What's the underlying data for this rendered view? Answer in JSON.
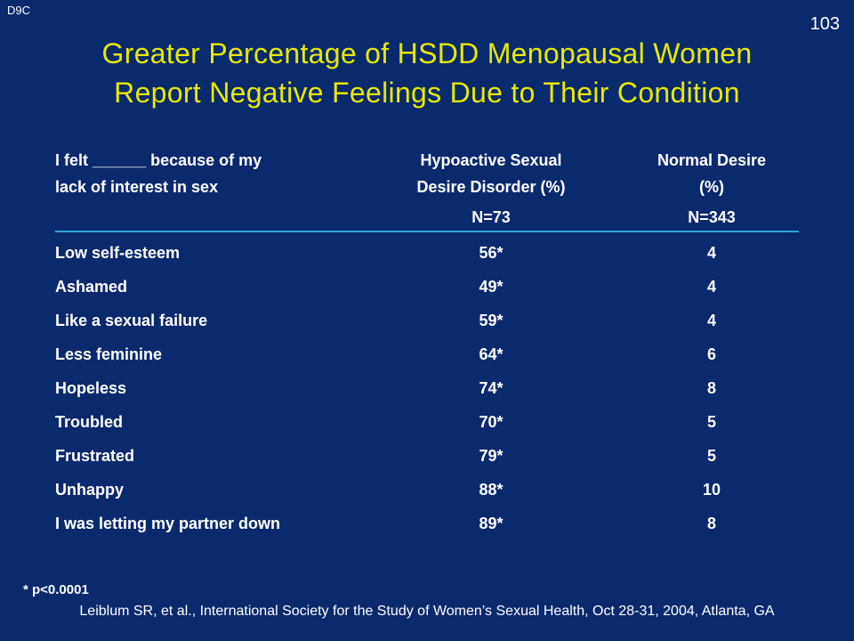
{
  "corner_tag": "D9C",
  "slide_number": "103",
  "title_line1": "Greater Percentage of HSDD Menopausal Women",
  "title_line2": "Report Negative Feelings Due to Their Condition",
  "table": {
    "col1_header_line1": "I felt ______ because of my",
    "col1_header_line2": "lack of interest in sex",
    "col2_header_line1": "Hypoactive Sexual",
    "col2_header_line2": "Desire Disorder (%)",
    "col3_header_line1": "Normal Desire",
    "col3_header_line2": "(%)",
    "col2_n": "N=73",
    "col3_n": "N=343",
    "rows": [
      {
        "feeling": "Low self-esteem",
        "hsdd": "56*",
        "normal": "4"
      },
      {
        "feeling": "Ashamed",
        "hsdd": "49*",
        "normal": "4"
      },
      {
        "feeling": "Like a sexual failure",
        "hsdd": "59*",
        "normal": "4"
      },
      {
        "feeling": "Less feminine",
        "hsdd": "64*",
        "normal": "6"
      },
      {
        "feeling": "Hopeless",
        "hsdd": "74*",
        "normal": "8"
      },
      {
        "feeling": "Troubled",
        "hsdd": "70*",
        "normal": "5"
      },
      {
        "feeling": "Frustrated",
        "hsdd": "79*",
        "normal": "5"
      },
      {
        "feeling": "Unhappy",
        "hsdd": "88*",
        "normal": "10"
      },
      {
        "feeling": "I was letting my partner down",
        "hsdd": "89*",
        "normal": "8"
      }
    ]
  },
  "footnote": "* p<0.0001",
  "citation": "Leiblum SR, et al., International Society for the Study of Women’s Sexual Health, Oct 28-31, 2004, Atlanta, GA",
  "colors": {
    "background": "#0a2a6e",
    "title": "#e8e800",
    "rule": "#2ea3d6"
  }
}
